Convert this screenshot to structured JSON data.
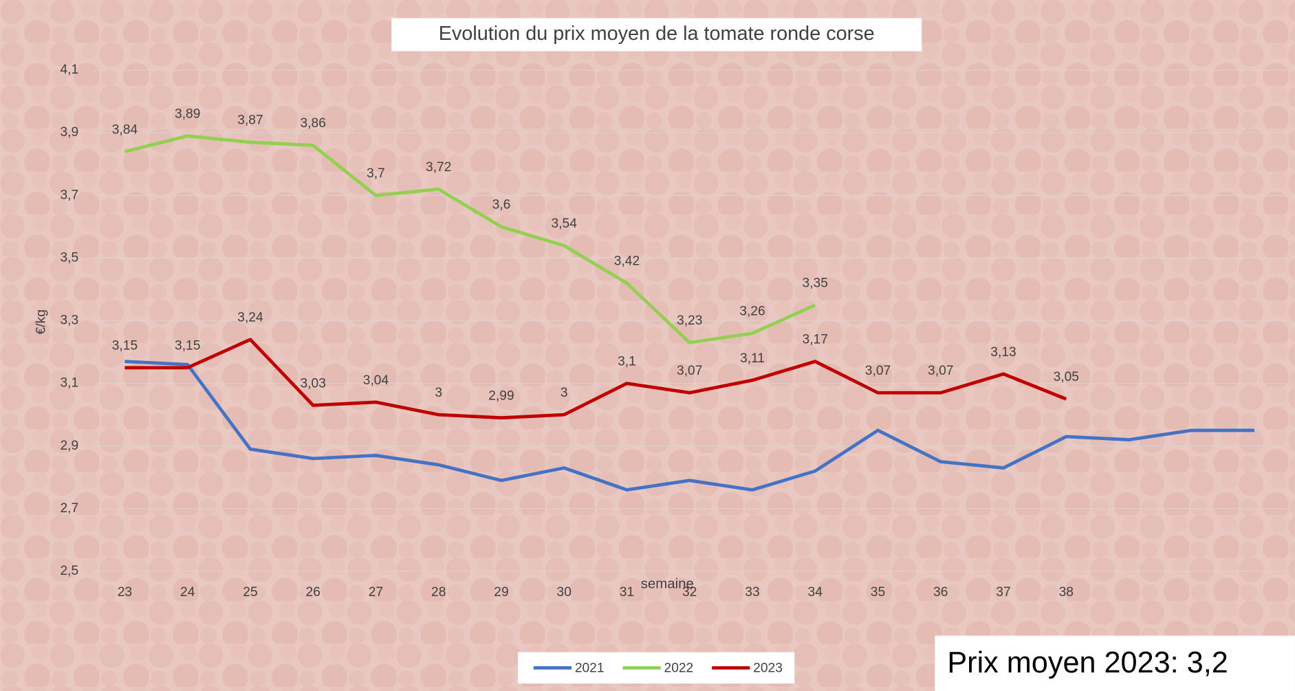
{
  "chart_data": {
    "type": "line",
    "title": "Evolution du prix moyen de la tomate ronde corse",
    "y_label": "€/kg",
    "x_label": "semaine",
    "note": "Prix moyen 2023: 3,2",
    "categories": [
      "23",
      "24",
      "25",
      "26",
      "27",
      "28",
      "29",
      "30",
      "31",
      "32",
      "33",
      "34",
      "35",
      "36",
      "37",
      "38",
      null,
      null,
      null
    ],
    "ylim": [
      2.5,
      4.1
    ],
    "yticks": [
      {
        "value": 2.5,
        "label": "2,5"
      },
      {
        "value": 2.7,
        "label": "2,7"
      },
      {
        "value": 2.9,
        "label": "2,9"
      },
      {
        "value": 3.1,
        "label": "3,1"
      },
      {
        "value": 3.3,
        "label": "3,3"
      },
      {
        "value": 3.5,
        "label": "3,5"
      },
      {
        "value": 3.7,
        "label": "3,7"
      },
      {
        "value": 3.9,
        "label": "3,9"
      },
      {
        "value": 4.1,
        "label": "4,1"
      }
    ],
    "grid": true,
    "legend": "bottom",
    "series": [
      {
        "name": "2021",
        "color": "#4472c4",
        "values": [
          3.17,
          3.16,
          2.89,
          2.86,
          2.87,
          2.84,
          2.79,
          2.83,
          2.76,
          2.79,
          2.76,
          2.82,
          2.95,
          2.85,
          2.83,
          2.93,
          2.92,
          2.95,
          2.95
        ]
      },
      {
        "name": "2022",
        "color": "#92d050",
        "values": [
          3.84,
          3.89,
          3.87,
          3.86,
          3.7,
          3.72,
          3.6,
          3.54,
          3.42,
          3.23,
          3.26,
          3.35,
          null,
          null,
          null,
          null,
          null,
          null,
          null
        ],
        "value_labels": [
          "3,84",
          "3,89",
          "3,87",
          "3,86",
          "3,7",
          "3,72",
          "3,6",
          "3,54",
          "3,42",
          "3,23",
          "3,26",
          "3,35",
          null,
          null,
          null,
          null,
          null,
          null,
          null
        ]
      },
      {
        "name": "2023",
        "color": "#c00000",
        "values": [
          3.15,
          3.15,
          3.24,
          3.03,
          3.04,
          3,
          2.99,
          3,
          3.1,
          3.07,
          3.11,
          3.17,
          3.07,
          3.07,
          3.13,
          3.05,
          null,
          null,
          null
        ],
        "value_labels": [
          "3,15",
          "3,15",
          "3,24",
          "3,03",
          "3,04",
          "3",
          "2,99",
          "3",
          "3,1",
          "3,07",
          "3,11",
          "3,17",
          "3,07",
          "3,07",
          "3,13",
          "3,05",
          null,
          null,
          null
        ]
      }
    ]
  }
}
